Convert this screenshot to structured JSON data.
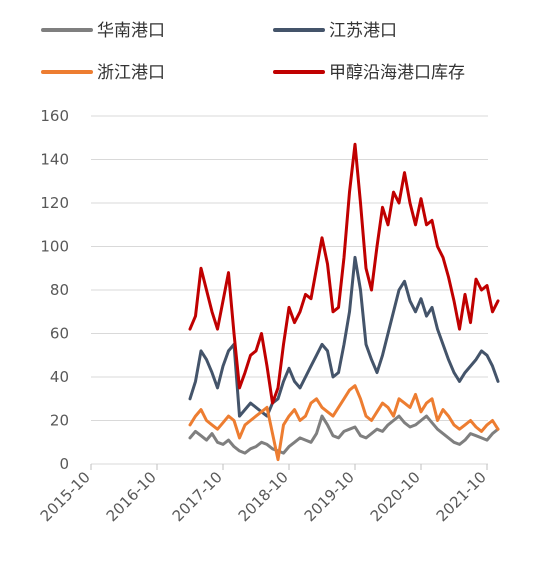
{
  "chart_data": {
    "type": "line",
    "title": "",
    "xlabel": "",
    "ylabel": "",
    "ylim": [
      0,
      160
    ],
    "yticks": [
      0,
      20,
      40,
      60,
      80,
      100,
      120,
      140,
      160
    ],
    "xticks": [
      "2015-10",
      "2016-10",
      "2017-10",
      "2018-10",
      "2019-10",
      "2020-10",
      "2021-10"
    ],
    "xrange": [
      "2015-10",
      "2021-12"
    ],
    "grid": "horizontal",
    "legend_position": "top",
    "x": [
      "2017-04",
      "2017-05",
      "2017-06",
      "2017-07",
      "2017-08",
      "2017-09",
      "2017-10",
      "2017-11",
      "2017-12",
      "2018-01",
      "2018-02",
      "2018-03",
      "2018-04",
      "2018-05",
      "2018-06",
      "2018-07",
      "2018-08",
      "2018-09",
      "2018-10",
      "2018-11",
      "2018-12",
      "2019-01",
      "2019-02",
      "2019-03",
      "2019-04",
      "2019-05",
      "2019-06",
      "2019-07",
      "2019-08",
      "2019-09",
      "2019-10",
      "2019-11",
      "2019-12",
      "2020-01",
      "2020-02",
      "2020-03",
      "2020-04",
      "2020-05",
      "2020-06",
      "2020-07",
      "2020-08",
      "2020-09",
      "2020-10",
      "2020-11",
      "2020-12",
      "2021-01",
      "2021-02",
      "2021-03",
      "2021-04",
      "2021-05",
      "2021-06",
      "2021-07",
      "2021-08",
      "2021-09",
      "2021-10",
      "2021-11",
      "2021-12"
    ],
    "series": [
      {
        "name": "华南港口",
        "color": "#7f7f7f",
        "values": [
          12,
          15,
          13,
          11,
          14,
          10,
          9,
          11,
          8,
          6,
          5,
          7,
          8,
          10,
          9,
          7,
          6,
          5,
          8,
          10,
          12,
          11,
          10,
          14,
          22,
          18,
          13,
          12,
          15,
          16,
          17,
          13,
          12,
          14,
          16,
          15,
          18,
          20,
          22,
          19,
          17,
          18,
          20,
          22,
          19,
          16,
          14,
          12,
          10,
          9,
          11,
          14,
          13,
          12,
          11,
          14,
          16
        ]
      },
      {
        "name": "江苏港口",
        "color": "#44546a",
        "values": [
          30,
          38,
          52,
          48,
          42,
          35,
          45,
          52,
          55,
          22,
          25,
          28,
          26,
          24,
          22,
          28,
          30,
          38,
          44,
          38,
          35,
          40,
          45,
          50,
          55,
          52,
          40,
          42,
          55,
          70,
          95,
          80,
          55,
          48,
          42,
          50,
          60,
          70,
          80,
          84,
          75,
          70,
          76,
          68,
          72,
          62,
          55,
          48,
          42,
          38,
          42,
          45,
          48,
          52,
          50,
          45,
          38
        ]
      },
      {
        "name": "浙江港口",
        "color": "#ed7d31",
        "values": [
          18,
          22,
          25,
          20,
          18,
          16,
          19,
          22,
          20,
          12,
          18,
          20,
          22,
          24,
          26,
          14,
          2,
          18,
          22,
          25,
          20,
          22,
          28,
          30,
          26,
          24,
          22,
          26,
          30,
          34,
          36,
          30,
          22,
          20,
          24,
          28,
          26,
          22,
          30,
          28,
          26,
          32,
          24,
          28,
          30,
          20,
          25,
          22,
          18,
          16,
          18,
          20,
          17,
          15,
          18,
          20,
          16
        ]
      },
      {
        "name": "甲醇沿海港口库存",
        "color": "#c00000",
        "values": [
          62,
          68,
          90,
          80,
          70,
          62,
          75,
          88,
          60,
          35,
          42,
          50,
          52,
          60,
          45,
          28,
          35,
          55,
          72,
          65,
          70,
          78,
          76,
          90,
          104,
          92,
          70,
          72,
          95,
          125,
          147,
          120,
          90,
          80,
          100,
          118,
          110,
          125,
          120,
          134,
          120,
          110,
          122,
          110,
          112,
          100,
          95,
          86,
          75,
          62,
          78,
          65,
          85,
          80,
          82,
          70,
          75
        ]
      }
    ]
  }
}
